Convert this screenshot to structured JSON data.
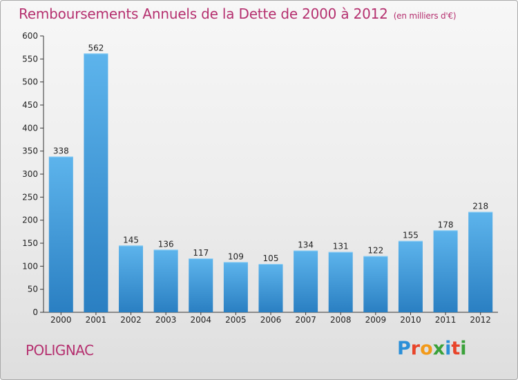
{
  "header": {
    "title": "Remboursements Annuels de la Dette de 2000 à 2012",
    "unit": "(en milliers d'€)"
  },
  "footer": {
    "city": "POLIGNAC",
    "brand_letters": [
      "P",
      "r",
      "o",
      "x",
      "i",
      "t",
      "i"
    ],
    "brand_colors": [
      "#2a8fd8",
      "#e8442a",
      "#f29a1a",
      "#3aa13a",
      "#2a8fd8",
      "#e8442a",
      "#3aa13a"
    ]
  },
  "colors": {
    "bar": "#3a97dc",
    "bar_light": "#5db4ec",
    "bar_dark": "#2a7fc2",
    "accent": "#b5306f"
  },
  "chart_data": {
    "type": "bar",
    "title": "Remboursements Annuels de la Dette de 2000 à 2012",
    "subtitle": "(en milliers d'€)",
    "xlabel": "",
    "ylabel": "",
    "categories": [
      "2000",
      "2001",
      "2002",
      "2003",
      "2004",
      "2005",
      "2006",
      "2007",
      "2008",
      "2009",
      "2010",
      "2011",
      "2012"
    ],
    "values": [
      338,
      562,
      145,
      136,
      117,
      109,
      105,
      134,
      131,
      122,
      155,
      178,
      218
    ],
    "ylim": [
      0,
      600
    ],
    "yticks": [
      0,
      50,
      100,
      150,
      200,
      250,
      300,
      350,
      400,
      450,
      500,
      550,
      600
    ],
    "grid": false,
    "data_labels": true
  }
}
